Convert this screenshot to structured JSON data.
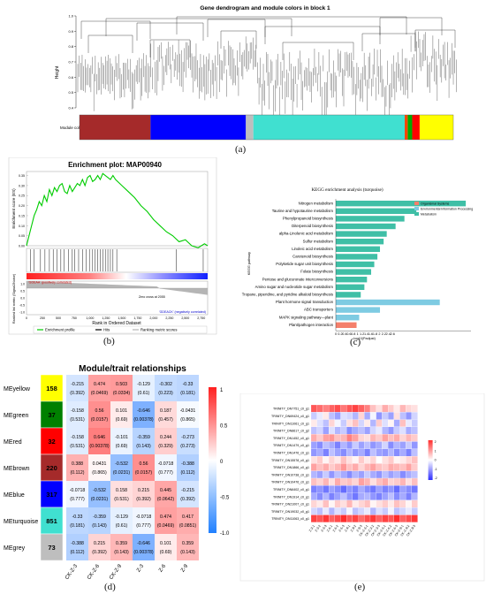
{
  "panel_a": {
    "title": "Gene dendrogram and module colors in block 1",
    "ylabel": "Height",
    "yticks": [
      "1.0",
      "0.9",
      "0.8",
      "0.7",
      "0.6",
      "0.5",
      "0.4"
    ],
    "color_row_label": "Module colors",
    "label": "(a)",
    "module_bar": [
      {
        "color": "#a52a2a",
        "width": 0.19
      },
      {
        "color": "#0000ff",
        "width": 0.255
      },
      {
        "color": "#bebebe",
        "width": 0.02
      },
      {
        "color": "#40e0d0",
        "width": 0.405
      },
      {
        "color": "#ff4500",
        "width": 0.008
      },
      {
        "color": "#00aa00",
        "width": 0.012
      },
      {
        "color": "#ff0000",
        "width": 0.02
      },
      {
        "color": "#ffff00",
        "width": 0.09
      }
    ]
  },
  "panel_b": {
    "title": "Enrichment plot: MAP00940",
    "ylabel_top": "Enrichment score (ES)",
    "ylabel_bottom": "Ranked list metric (Signal2Noise)",
    "xlabel": "Rank in Ordered Dataset",
    "es_ticks": [
      "0.35",
      "0.30",
      "0.25",
      "0.20",
      "0.15",
      "0.10",
      "0.05",
      "0.00"
    ],
    "metric_ticks": [
      "1.0",
      "0.5",
      "0.0",
      "-0.5",
      "-1.0"
    ],
    "x_ticks": [
      "0",
      "250",
      "500",
      "750",
      "1,000",
      "1,250",
      "1,500",
      "1,750",
      "2,000",
      "2,250",
      "2,500",
      "2,750"
    ],
    "pos_label": "'GDEAA' (positively correlated)",
    "neg_label": "'GDEACK' (negatively correlated)",
    "zero_cross": "Zero cross at 2055",
    "legend": [
      "Enrichment profile",
      "Hits",
      "Ranking metric scores"
    ],
    "label": "(b)",
    "es_curve": [
      [
        0,
        0.0
      ],
      [
        40,
        0.05
      ],
      [
        80,
        0.1
      ],
      [
        120,
        0.15
      ],
      [
        160,
        0.18
      ],
      [
        200,
        0.22
      ],
      [
        240,
        0.2
      ],
      [
        280,
        0.25
      ],
      [
        320,
        0.22
      ],
      [
        360,
        0.28
      ],
      [
        400,
        0.25
      ],
      [
        440,
        0.29
      ],
      [
        480,
        0.27
      ],
      [
        520,
        0.3
      ],
      [
        560,
        0.31
      ],
      [
        600,
        0.27
      ],
      [
        640,
        0.26
      ],
      [
        680,
        0.3
      ],
      [
        720,
        0.27
      ],
      [
        760,
        0.29
      ],
      [
        800,
        0.31
      ],
      [
        840,
        0.3
      ],
      [
        880,
        0.33
      ],
      [
        920,
        0.3
      ],
      [
        960,
        0.34
      ],
      [
        1000,
        0.35
      ],
      [
        1040,
        0.32
      ],
      [
        1080,
        0.33
      ],
      [
        1120,
        0.35
      ],
      [
        1160,
        0.33
      ],
      [
        1200,
        0.36
      ],
      [
        1240,
        0.35
      ],
      [
        1280,
        0.34
      ],
      [
        1320,
        0.33
      ],
      [
        1360,
        0.35
      ],
      [
        1400,
        0.33
      ],
      [
        1500,
        0.3
      ],
      [
        1600,
        0.27
      ],
      [
        1700,
        0.24
      ],
      [
        1800,
        0.2
      ],
      [
        1900,
        0.17
      ],
      [
        2000,
        0.13
      ],
      [
        2100,
        0.1
      ],
      [
        2200,
        0.07
      ],
      [
        2300,
        0.05
      ],
      [
        2400,
        0.02
      ],
      [
        2500,
        0.03
      ],
      [
        2600,
        0.0
      ],
      [
        2700,
        -0.01
      ],
      [
        2800,
        0.01
      ],
      [
        2850,
        0.0
      ]
    ],
    "hits": [
      60,
      120,
      220,
      290,
      360,
      420,
      480,
      540,
      590,
      660,
      720,
      760,
      820,
      880,
      940,
      990,
      1040,
      1080,
      1120,
      1160,
      1200,
      1240,
      1280,
      1320,
      1360,
      1420,
      2360,
      2780
    ]
  },
  "panel_c": {
    "title": "KEGG enrichment analysis (turquoise)",
    "ylabel": "KEGG pathway",
    "xlabel": "-log10(Padjust)",
    "x_ticks": [
      "0",
      "0.2",
      "0.4",
      "0.6",
      "0.8",
      "1",
      "1.2",
      "1.4",
      "1.6",
      "1.8",
      "2",
      "2.2",
      "2.4",
      "2.6"
    ],
    "x_max": 2.6,
    "legend": [
      {
        "label": "Organismal Systems",
        "color": "#f4806c"
      },
      {
        "label": "Environmental Information Processing",
        "color": "#7ecbe2"
      },
      {
        "label": "Metabolism",
        "color": "#3fbfa6"
      }
    ],
    "label": "(c)",
    "pathways": [
      {
        "name": "Nitrogen metabolism",
        "value": 2.5,
        "group": 2
      },
      {
        "name": "Taurine and hypotaurine metabolism",
        "value": 1.55,
        "group": 2
      },
      {
        "name": "Phenylpropanoid biosynthesis",
        "value": 1.32,
        "group": 2
      },
      {
        "name": "Diterpenoid biosynthesis",
        "value": 1.15,
        "group": 2
      },
      {
        "name": "alpha-Linolenic acid metabolism",
        "value": 0.98,
        "group": 2
      },
      {
        "name": "Sulfur metabolism",
        "value": 0.92,
        "group": 2
      },
      {
        "name": "Linoleic acid metabolism",
        "value": 0.85,
        "group": 2
      },
      {
        "name": "Carotenoid biosynthesis",
        "value": 0.8,
        "group": 2
      },
      {
        "name": "Polyketide sugar unit biosynthesis",
        "value": 0.74,
        "group": 2
      },
      {
        "name": "Folate biosynthesis",
        "value": 0.68,
        "group": 2
      },
      {
        "name": "Pentose and glucuronate interconversions",
        "value": 0.6,
        "group": 2
      },
      {
        "name": "Amino sugar and nucleotide sugar metabolism",
        "value": 0.55,
        "group": 2
      },
      {
        "name": "Tropane, piperidine, and pyridine alkaloid biosynthesis",
        "value": 0.48,
        "group": 2
      },
      {
        "name": "Plant hormone signal transduction",
        "value": 2.0,
        "group": 1
      },
      {
        "name": "ABC transporters",
        "value": 0.85,
        "group": 1
      },
      {
        "name": "MAPK signaling pathway—plant",
        "value": 0.45,
        "group": 1
      },
      {
        "name": "Plant/pathogen interaction",
        "value": 0.4,
        "group": 0
      }
    ]
  },
  "panel_d": {
    "title": "Module/trait relationships",
    "label": "(d)",
    "columns": [
      "CK-Z-3",
      "CK-Z-6",
      "CK-Z-9",
      "Z-3",
      "Z-6",
      "Z-9"
    ],
    "scale_ticks": [
      "1",
      "0.5",
      "0",
      "-0.5",
      "-1.0"
    ],
    "rows": [
      {
        "name": "MEyellow",
        "color": "#ffff00",
        "count": "158",
        "count_color": "#000000",
        "r": [
          "-0.215",
          "0.474",
          "0.503",
          "-0.129",
          "-0.302",
          "-0.33"
        ],
        "p": [
          "(0.392)",
          "(0.0469)",
          "(0.0334)",
          "(0.61)",
          "(0.223)",
          "(0.181)"
        ]
      },
      {
        "name": "MEgreen",
        "color": "#008000",
        "count": "37",
        "count_color": "#000000",
        "r": [
          "-0.158",
          "0.56",
          "0.101",
          "-0.646",
          "0.187",
          "-0.0431"
        ],
        "p": [
          "(0.531)",
          "(0.0157)",
          "(0.69)",
          "(0.00378)",
          "(0.457)",
          "(0.865)"
        ]
      },
      {
        "name": "MEred",
        "color": "#ff0000",
        "count": "32",
        "count_color": "#000000",
        "r": [
          "-0.158",
          "0.646",
          "-0.101",
          "-0.359",
          "0.244",
          "-0.273"
        ],
        "p": [
          "(0.531)",
          "(0.00378)",
          "(0.69)",
          "(0.143)",
          "(0.329)",
          "(0.273)"
        ]
      },
      {
        "name": "MEbrown",
        "color": "#a52a2a",
        "count": "220",
        "count_color": "#000000",
        "r": [
          "0.388",
          "0.0431",
          "-0.532",
          "0.56",
          "-0.0718",
          "-0.388"
        ],
        "p": [
          "(0.112)",
          "(0.865)",
          "(0.0231)",
          "(0.0157)",
          "(0.777)",
          "(0.112)"
        ]
      },
      {
        "name": "MEblue",
        "color": "#0000ff",
        "count": "317",
        "count_color": "#000000",
        "r": [
          "-0.0718",
          "-0.532",
          "0.158",
          "0.215",
          "0.445",
          "-0.215"
        ],
        "p": [
          "(0.777)",
          "(0.0231)",
          "(0.531)",
          "(0.392)",
          "(0.0642)",
          "(0.392)"
        ]
      },
      {
        "name": "MEturquoise",
        "color": "#40e0d0",
        "count": "851",
        "count_color": "#000000",
        "r": [
          "-0.33",
          "-0.359",
          "-0.129",
          "-0.0718",
          "0.474",
          "0.417"
        ],
        "p": [
          "(0.181)",
          "(0.143)",
          "(0.61)",
          "(0.777)",
          "(0.0469)",
          "(0.0851)"
        ]
      },
      {
        "name": "MEgrey",
        "color": "#bebebe",
        "count": "73",
        "count_color": "#000000",
        "r": [
          "-0.388",
          "0.215",
          "0.359",
          "-0.646",
          "0.101",
          "0.359"
        ],
        "p": [
          "(0.112)",
          "(0.392)",
          "(0.143)",
          "(0.00378)",
          "(0.69)",
          "(0.143)"
        ]
      }
    ]
  },
  "panel_e": {
    "label": "(e)",
    "genes": [
      "TRINITY_DN7751_c0_g1",
      "TRINITY_DN69424_c0_g1",
      "TRINITY_DN11061_c0_g1",
      "TRINITY_DN8617_c0_g2",
      "TRINITY_DN1452_c0_g1",
      "TRINITY_DN1479_c0_g1",
      "TRINITY_DN1476_c0_g1",
      "TRINITY_DN15578_c0_g1",
      "TRINITY_DN1866_c0_g1",
      "TRINITY_DN10738_c0_g1",
      "TRINITY_DN10476_c0_g1",
      "TRINITY_DN6402_c0_g1",
      "TRINITY_DN1914_c0_g1",
      "TRINITY_DN21007_c0_g1",
      "TRINITY_DN19032_c0_g1",
      "TRINITY_DN11063_c0_g1"
    ],
    "samples": [
      "Z-3-1",
      "Z-3-2",
      "Z-3-3",
      "Z-6-1",
      "Z-6-2",
      "Z-6-3",
      "Z-9-1",
      "Z-9-2",
      "Z-9-3",
      "CK-Z-3-1",
      "CK-Z-3-2",
      "CK-Z-3-3",
      "CK-Z-6-1",
      "CK-Z-6-2",
      "CK-Z-6-3",
      "CK-Z-9-1",
      "CK-Z-9-2",
      "CK-Z-9-3"
    ],
    "scale_ticks": [
      "2",
      "1",
      "0",
      "-1",
      "-2"
    ],
    "matrix": [
      [
        1.6,
        1.4,
        1.2,
        1.5,
        1.7,
        1.3,
        1.6,
        1.8,
        1.5,
        1.2,
        0.6,
        0.3,
        0.8,
        0.5,
        0.2,
        0.7,
        0.4,
        0.3
      ],
      [
        -0.5,
        -0.2,
        0.2,
        -0.6,
        -0.9,
        -0.3,
        -0.4,
        -0.7,
        0.4,
        -0.8,
        -0.1,
        -1.0,
        -0.5,
        -0.9,
        0.3,
        -0.6,
        -1.0,
        -0.4
      ],
      [
        0.2,
        -0.3,
        -0.6,
        0.4,
        -0.1,
        -0.5,
        0.3,
        0.6,
        -0.4,
        0.2,
        -0.7,
        0.5,
        -0.3,
        0.1,
        -0.8,
        0.6,
        -0.2,
        -0.5
      ],
      [
        -0.6,
        -0.4,
        -0.9,
        -0.3,
        -0.7,
        -0.5,
        -1.1,
        -0.8,
        -0.6,
        -0.9,
        -0.4,
        -0.2,
        -0.7,
        -1.0,
        -0.5,
        -0.3,
        -0.8,
        -0.6
      ],
      [
        0.8,
        0.5,
        0.9,
        1.0,
        0.6,
        0.7,
        1.2,
        0.9,
        0.4,
        0.3,
        0.7,
        0.5,
        0.9,
        0.6,
        0.8,
        0.4,
        0.7,
        0.5
      ],
      [
        -0.9,
        -1.1,
        -0.6,
        -0.8,
        -1.2,
        -0.7,
        -1.0,
        -0.5,
        -0.9,
        -0.6,
        -1.0,
        -0.8,
        -0.4,
        -1.1,
        -0.7,
        -0.9,
        -0.5,
        -1.0
      ],
      [
        -1.0,
        -0.8,
        -1.2,
        -0.6,
        -0.9,
        -1.1,
        -0.7,
        -1.0,
        -0.8,
        -1.2,
        -0.6,
        -0.9,
        -1.0,
        -0.7,
        -1.1,
        -0.8,
        -1.2,
        -0.6
      ],
      [
        0.3,
        0.5,
        0.1,
        0.4,
        0.2,
        0.6,
        0.3,
        0.1,
        0.5,
        0.2,
        0.4,
        0.0,
        0.3,
        0.5,
        0.1,
        0.2,
        0.4,
        0.6
      ],
      [
        0.9,
        0.6,
        0.8,
        0.5,
        0.7,
        1.0,
        0.6,
        0.8,
        0.4,
        0.7,
        0.9,
        0.6,
        0.5,
        0.8,
        0.7,
        0.6,
        0.9,
        0.5
      ],
      [
        -0.7,
        -0.9,
        -0.5,
        -1.0,
        -0.6,
        -0.8,
        -1.1,
        -0.7,
        -0.9,
        -0.5,
        -0.8,
        -1.0,
        -0.6,
        -0.9,
        -0.7,
        -1.1,
        -0.8,
        -0.6
      ],
      [
        0.6,
        0.4,
        0.7,
        0.3,
        0.8,
        0.5,
        0.6,
        0.4,
        0.9,
        0.7,
        0.3,
        0.6,
        0.8,
        0.4,
        0.5,
        0.7,
        0.3,
        0.6
      ],
      [
        -1.2,
        -1.0,
        -1.3,
        -0.9,
        -1.1,
        -1.4,
        -1.0,
        -1.2,
        -0.8,
        -1.1,
        -1.3,
        -0.9,
        -1.2,
        -1.0,
        -1.4,
        -0.9,
        -1.1,
        -1.3
      ],
      [
        -0.8,
        -1.1,
        -0.7,
        -1.2,
        -0.9,
        -0.6,
        -1.0,
        -1.3,
        -0.8,
        -0.7,
        -1.0,
        -1.2,
        -0.9,
        -0.6,
        -1.1,
        -0.8,
        -1.2,
        -0.7
      ],
      [
        0.4,
        0.2,
        0.6,
        0.1,
        0.5,
        0.3,
        0.7,
        0.2,
        0.4,
        0.6,
        0.1,
        0.3,
        0.5,
        0.2,
        0.6,
        0.4,
        0.1,
        0.5
      ],
      [
        -0.4,
        -0.6,
        -0.2,
        -0.7,
        -0.3,
        -0.5,
        -0.1,
        -0.6,
        -0.4,
        -0.2,
        -0.7,
        -0.3,
        -0.5,
        -0.1,
        -0.6,
        -0.4,
        -0.2,
        -0.5
      ],
      [
        1.8,
        1.6,
        1.9,
        1.5,
        1.7,
        2.0,
        1.6,
        1.8,
        1.4,
        1.7,
        1.9,
        1.5,
        1.8,
        1.6,
        2.0,
        1.5,
        1.7,
        1.9
      ]
    ]
  }
}
